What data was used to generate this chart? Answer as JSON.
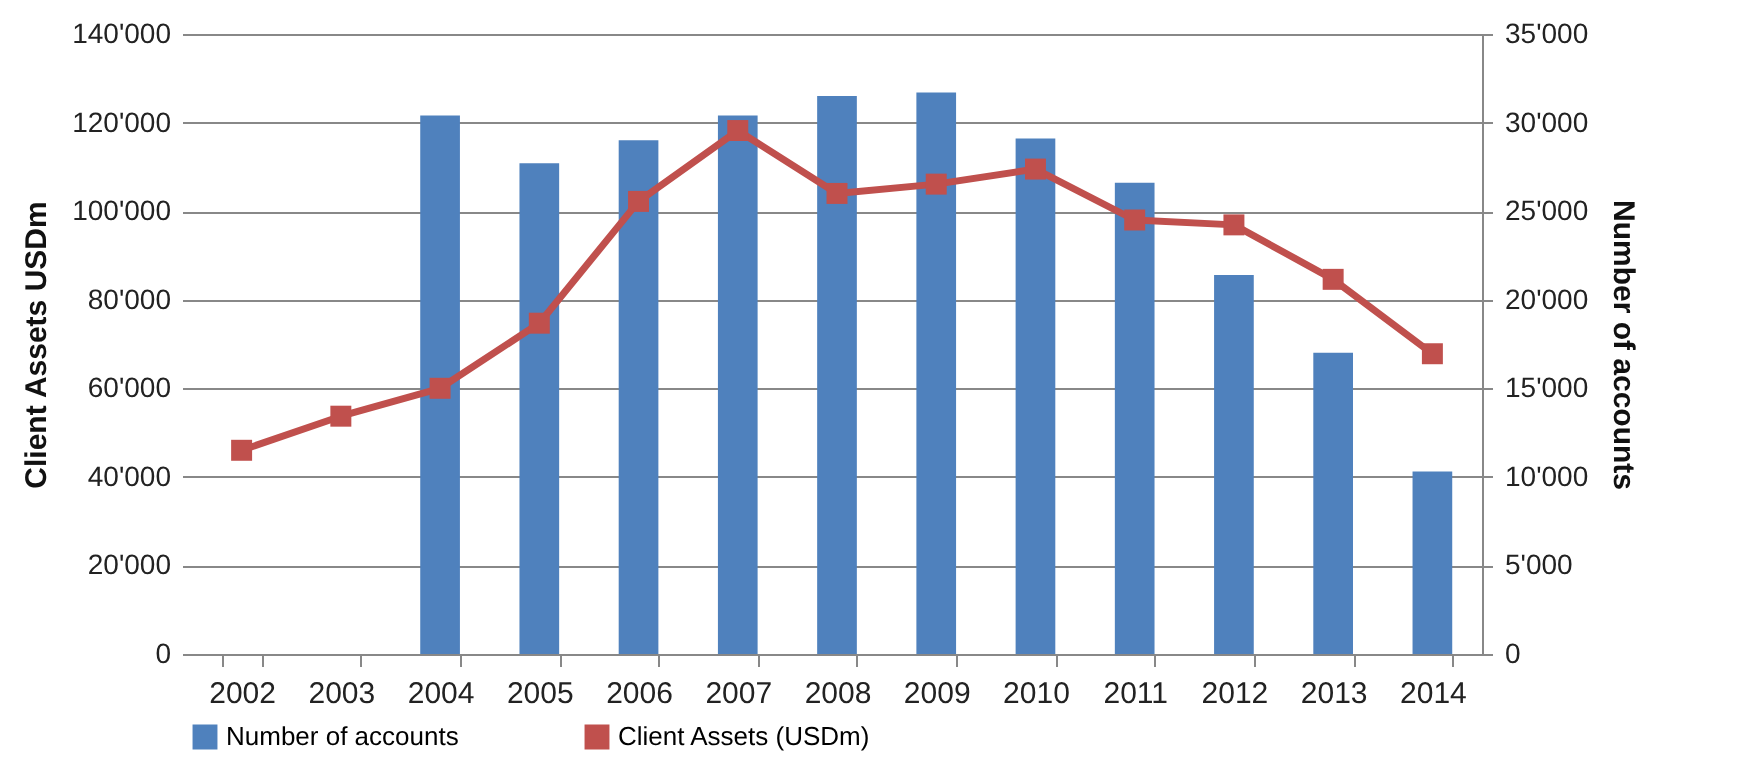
{
  "chart_data": {
    "type": "bar",
    "categories": [
      "2002",
      "2003",
      "2004",
      "2005",
      "2006",
      "2007",
      "2008",
      "2009",
      "2010",
      "2011",
      "2012",
      "2013",
      "2014"
    ],
    "series": [
      {
        "name": "Number of accounts",
        "type": "bar",
        "axis": "y2",
        "color": "#4f81bd",
        "values": [
          null,
          null,
          30400,
          27700,
          29000,
          30400,
          31500,
          31700,
          29100,
          26600,
          21400,
          17000,
          10300
        ]
      },
      {
        "name": "Client Assets (USDm)",
        "type": "line",
        "color": "#c0504d",
        "marker": "square",
        "values": [
          46000,
          53700,
          60000,
          74700,
          102200,
          118200,
          104000,
          106100,
          109500,
          98000,
          96900,
          84600,
          67800
        ]
      }
    ],
    "ylabel": "Client Assets USDm",
    "y2label": "Number of accounts",
    "ylim": [
      0,
      140000
    ],
    "yticks": [
      0,
      {
        "value": 20000,
        "label": "20'000"
      },
      {
        "value": 40000,
        "label": "40'000"
      },
      {
        "value": 60000,
        "label": "60'000"
      },
      {
        "value": 80000,
        "label": "80'000"
      },
      {
        "value": 100000,
        "label": "100'000"
      },
      {
        "value": 120000,
        "label": "120'000"
      },
      {
        "value": 140000,
        "label": "140'000"
      }
    ],
    "y2lim": [
      0,
      35000
    ],
    "y2ticks": [
      0,
      {
        "value": 5000,
        "label": "5'000"
      },
      {
        "value": 10000,
        "label": "10'000"
      },
      {
        "value": 15000,
        "label": "15'000"
      },
      {
        "value": 20000,
        "label": "20'000"
      },
      {
        "value": 25000,
        "label": "25'000"
      },
      {
        "value": 30000,
        "label": "30'000"
      },
      {
        "value": 35000,
        "label": "35'000"
      }
    ],
    "grid": "y",
    "legend": "bottom"
  }
}
